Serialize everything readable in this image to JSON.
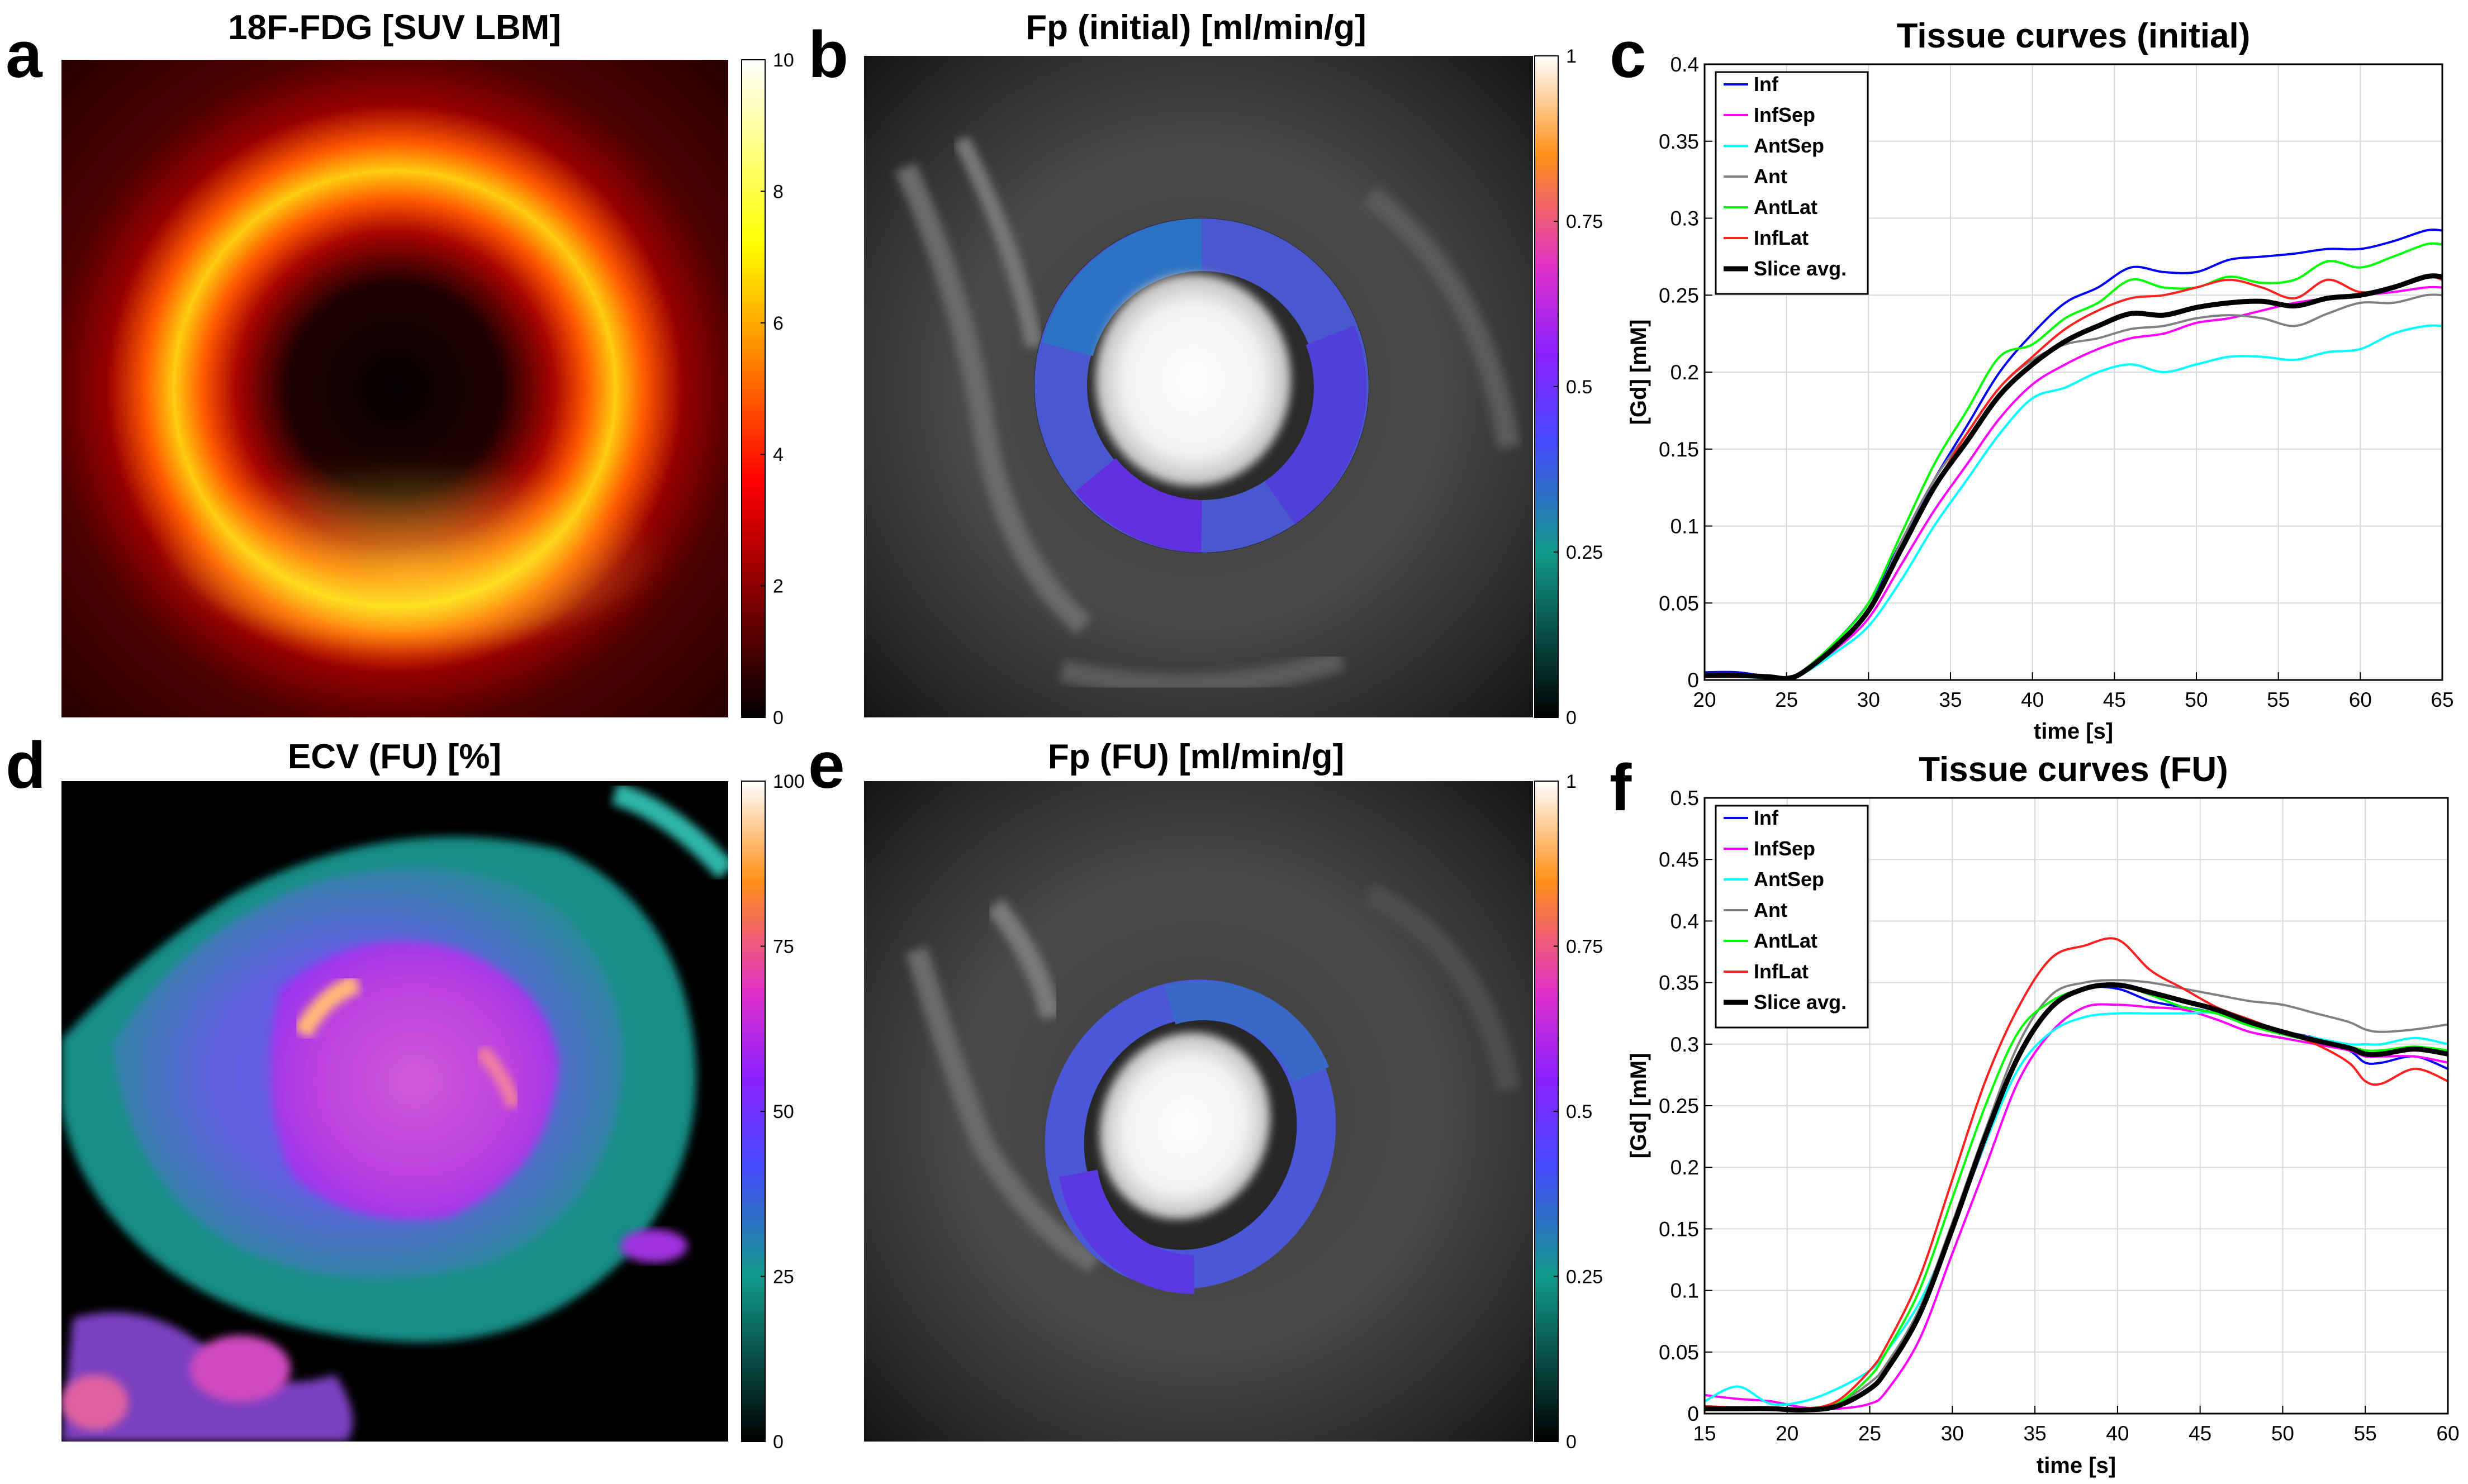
{
  "colors": {
    "Inf": "#0000ff",
    "InfSep": "#ff00ff",
    "AntSep": "#00ffff",
    "Ant": "#808080",
    "AntLat": "#00ff00",
    "InfLat": "#ff2020",
    "Slice avg.": "#000000"
  },
  "panels": {
    "a": {
      "letter": "a",
      "title": "18F-FDG [SUV LBM]",
      "colormap": "hot",
      "colorbar_ticks": [
        "0",
        "2",
        "4",
        "6",
        "8",
        "10"
      ]
    },
    "b": {
      "letter": "b",
      "title": "Fp (initial) [ml/min/g]",
      "colormap": "bmy",
      "colorbar_ticks": [
        "0",
        "0.25",
        "0.5",
        "0.75",
        "1"
      ]
    },
    "d": {
      "letter": "d",
      "title": "ECV (FU) [%]",
      "colormap": "bmy",
      "colorbar_ticks": [
        "0",
        "25",
        "50",
        "75",
        "100"
      ]
    },
    "e": {
      "letter": "e",
      "title": "Fp (FU) [ml/min/g]",
      "colormap": "bmy",
      "colorbar_ticks": [
        "0",
        "0.25",
        "0.5",
        "0.75",
        "1"
      ]
    }
  },
  "chart_data": [
    {
      "letter": "c",
      "type": "line",
      "title": "Tissue curves (initial)",
      "xlabel": "time [s]",
      "ylabel": "[Gd] [mM]",
      "xlim": [
        20,
        65
      ],
      "ylim": [
        0,
        0.4
      ],
      "xticks": [
        20,
        25,
        30,
        35,
        40,
        45,
        50,
        55,
        60,
        65
      ],
      "yticks": [
        0,
        0.05,
        0.1,
        0.15,
        0.2,
        0.25,
        0.3,
        0.35,
        0.4
      ],
      "ytick_labels": [
        "0",
        "0.05",
        "0.1",
        "0.15",
        "0.2",
        "0.25",
        "0.3",
        "0.35",
        "0.4"
      ],
      "grid": true,
      "legend": "top-left",
      "legend_entries": [
        "Inf",
        "InfSep",
        "AntSep",
        "Ant",
        "AntLat",
        "InfLat",
        "Slice avg."
      ],
      "x": [
        20,
        22,
        24,
        25,
        26,
        28,
        30,
        32,
        34,
        36,
        38,
        40,
        42,
        44,
        46,
        48,
        50,
        52,
        54,
        56,
        58,
        60,
        62,
        64,
        65
      ],
      "series": [
        {
          "name": "Inf",
          "values": [
            0.005,
            0.005,
            0.002,
            0.001,
            0.006,
            0.025,
            0.05,
            0.09,
            0.13,
            0.165,
            0.2,
            0.225,
            0.245,
            0.255,
            0.268,
            0.265,
            0.265,
            0.273,
            0.275,
            0.277,
            0.28,
            0.28,
            0.285,
            0.292,
            0.292
          ]
        },
        {
          "name": "InfSep",
          "values": [
            0.002,
            0.003,
            0.001,
            0.001,
            0.004,
            0.02,
            0.04,
            0.075,
            0.11,
            0.14,
            0.17,
            0.192,
            0.205,
            0.215,
            0.222,
            0.225,
            0.232,
            0.235,
            0.24,
            0.245,
            0.248,
            0.25,
            0.252,
            0.255,
            0.255
          ]
        },
        {
          "name": "AntSep",
          "values": [
            0.002,
            0.002,
            0.001,
            0.001,
            0.004,
            0.018,
            0.035,
            0.065,
            0.1,
            0.13,
            0.16,
            0.183,
            0.19,
            0.2,
            0.205,
            0.2,
            0.205,
            0.21,
            0.21,
            0.208,
            0.213,
            0.215,
            0.225,
            0.23,
            0.23
          ]
        },
        {
          "name": "Ant",
          "values": [
            0.002,
            0.003,
            0.002,
            0.001,
            0.005,
            0.022,
            0.045,
            0.09,
            0.13,
            0.16,
            0.19,
            0.208,
            0.218,
            0.222,
            0.228,
            0.23,
            0.235,
            0.237,
            0.235,
            0.23,
            0.238,
            0.245,
            0.245,
            0.25,
            0.25
          ]
        },
        {
          "name": "AntLat",
          "values": [
            0.002,
            0.003,
            0.002,
            0.001,
            0.006,
            0.025,
            0.05,
            0.095,
            0.14,
            0.175,
            0.21,
            0.218,
            0.235,
            0.245,
            0.26,
            0.255,
            0.255,
            0.262,
            0.258,
            0.26,
            0.272,
            0.268,
            0.275,
            0.283,
            0.283
          ]
        },
        {
          "name": "InfLat",
          "values": [
            0.002,
            0.002,
            0.002,
            0.001,
            0.005,
            0.022,
            0.045,
            0.085,
            0.125,
            0.16,
            0.19,
            0.21,
            0.228,
            0.24,
            0.248,
            0.25,
            0.255,
            0.26,
            0.255,
            0.248,
            0.26,
            0.252,
            0.255,
            0.262,
            0.26
          ]
        },
        {
          "name": "Slice avg.",
          "values": [
            0.003,
            0.003,
            0.002,
            0.001,
            0.005,
            0.022,
            0.045,
            0.085,
            0.125,
            0.155,
            0.185,
            0.205,
            0.22,
            0.23,
            0.238,
            0.237,
            0.242,
            0.245,
            0.246,
            0.243,
            0.248,
            0.25,
            0.255,
            0.262,
            0.262
          ]
        }
      ]
    },
    {
      "letter": "f",
      "type": "line",
      "title": "Tissue curves (FU)",
      "xlabel": "time [s]",
      "ylabel": "[Gd] [mM]",
      "xlim": [
        15,
        60
      ],
      "ylim": [
        0,
        0.5
      ],
      "xticks": [
        15,
        20,
        25,
        30,
        35,
        40,
        45,
        50,
        55,
        60
      ],
      "yticks": [
        0,
        0.05,
        0.1,
        0.15,
        0.2,
        0.25,
        0.3,
        0.35,
        0.4,
        0.45,
        0.5
      ],
      "ytick_labels": [
        "0",
        "0.05",
        "0.1",
        "0.15",
        "0.2",
        "0.25",
        "0.3",
        "0.35",
        "0.4",
        "0.45",
        "0.5"
      ],
      "grid": true,
      "legend": "top-left",
      "legend_entries": [
        "Inf",
        "InfSep",
        "AntSep",
        "Ant",
        "AntLat",
        "InfLat",
        "Slice avg."
      ],
      "x": [
        15,
        17,
        19,
        21,
        23,
        25,
        26,
        28,
        30,
        32,
        34,
        36,
        38,
        40,
        42,
        44,
        46,
        48,
        50,
        52,
        54,
        55,
        56,
        58,
        60
      ],
      "series": [
        {
          "name": "Inf",
          "values": [
            0.005,
            0.004,
            0.004,
            0.003,
            0.006,
            0.02,
            0.035,
            0.08,
            0.15,
            0.22,
            0.29,
            0.33,
            0.345,
            0.345,
            0.335,
            0.33,
            0.325,
            0.315,
            0.31,
            0.305,
            0.295,
            0.285,
            0.285,
            0.29,
            0.28
          ]
        },
        {
          "name": "InfSep",
          "values": [
            0.015,
            0.012,
            0.01,
            0.005,
            0.004,
            0.008,
            0.018,
            0.06,
            0.13,
            0.2,
            0.27,
            0.31,
            0.33,
            0.332,
            0.33,
            0.328,
            0.32,
            0.31,
            0.305,
            0.3,
            0.295,
            0.29,
            0.29,
            0.29,
            0.285
          ]
        },
        {
          "name": "AntSep",
          "values": [
            0.01,
            0.022,
            0.008,
            0.01,
            0.02,
            0.035,
            0.05,
            0.09,
            0.15,
            0.22,
            0.28,
            0.31,
            0.322,
            0.325,
            0.325,
            0.325,
            0.325,
            0.315,
            0.31,
            0.305,
            0.3,
            0.3,
            0.3,
            0.305,
            0.3
          ]
        },
        {
          "name": "Ant",
          "values": [
            0.005,
            0.005,
            0.004,
            0.003,
            0.008,
            0.025,
            0.04,
            0.085,
            0.155,
            0.23,
            0.3,
            0.34,
            0.35,
            0.352,
            0.35,
            0.345,
            0.34,
            0.335,
            0.332,
            0.325,
            0.318,
            0.312,
            0.31,
            0.312,
            0.316
          ]
        },
        {
          "name": "AntLat",
          "values": [
            0.005,
            0.004,
            0.004,
            0.003,
            0.008,
            0.03,
            0.05,
            0.1,
            0.175,
            0.25,
            0.31,
            0.335,
            0.345,
            0.348,
            0.34,
            0.33,
            0.325,
            0.315,
            0.308,
            0.302,
            0.298,
            0.295,
            0.295,
            0.298,
            0.295
          ]
        },
        {
          "name": "InfLat",
          "values": [
            0.006,
            0.005,
            0.005,
            0.004,
            0.01,
            0.035,
            0.055,
            0.11,
            0.19,
            0.27,
            0.33,
            0.37,
            0.38,
            0.385,
            0.36,
            0.345,
            0.33,
            0.32,
            0.31,
            0.3,
            0.285,
            0.27,
            0.268,
            0.28,
            0.27
          ]
        },
        {
          "name": "Slice avg.",
          "values": [
            0.004,
            0.004,
            0.004,
            0.003,
            0.006,
            0.02,
            0.035,
            0.08,
            0.15,
            0.225,
            0.29,
            0.33,
            0.345,
            0.348,
            0.342,
            0.335,
            0.328,
            0.318,
            0.31,
            0.303,
            0.297,
            0.292,
            0.292,
            0.296,
            0.292
          ]
        }
      ]
    }
  ]
}
